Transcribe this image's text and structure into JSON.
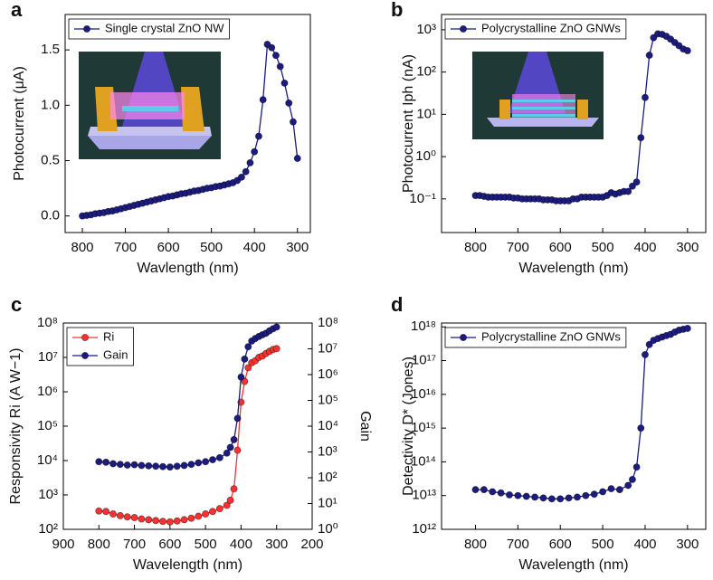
{
  "chart_data": [
    {
      "type": "line",
      "panel": "a",
      "x_label": "Wavlength (nm)",
      "y_label": "Photocurrent (μA)",
      "xlim": [
        840,
        270
      ],
      "xticks": [
        800,
        700,
        600,
        500,
        400,
        300
      ],
      "ylim": [
        -0.15,
        1.82
      ],
      "yticks": [
        {
          "value": 0,
          "label": "0.0"
        },
        0.5,
        {
          "value": 1,
          "label": "1.0"
        },
        1.5
      ],
      "log_y": false,
      "legend": "upper left",
      "x": [
        800,
        790,
        780,
        770,
        760,
        750,
        740,
        730,
        720,
        710,
        700,
        690,
        680,
        670,
        660,
        650,
        640,
        630,
        620,
        610,
        600,
        590,
        580,
        570,
        560,
        550,
        540,
        530,
        520,
        510,
        500,
        490,
        480,
        470,
        460,
        450,
        440,
        430,
        420,
        410,
        400,
        390,
        380,
        370,
        360,
        350,
        340,
        330,
        320,
        310,
        300
      ],
      "series": [
        {
          "name": "Single crystal ZnO NW",
          "color": "#1b1b80",
          "values": [
            0.0,
            0.005,
            0.01,
            0.02,
            0.025,
            0.03,
            0.04,
            0.045,
            0.055,
            0.065,
            0.075,
            0.085,
            0.095,
            0.105,
            0.115,
            0.125,
            0.135,
            0.145,
            0.155,
            0.165,
            0.175,
            0.18,
            0.19,
            0.2,
            0.205,
            0.215,
            0.225,
            0.23,
            0.24,
            0.25,
            0.255,
            0.265,
            0.27,
            0.28,
            0.29,
            0.3,
            0.32,
            0.35,
            0.4,
            0.48,
            0.58,
            0.72,
            1.05,
            1.55,
            1.52,
            1.45,
            1.35,
            1.2,
            1.02,
            0.85,
            0.52
          ]
        }
      ]
    },
    {
      "type": "line",
      "panel": "b",
      "x_label": "Wavelength (nm)",
      "y_label": "Photocurrent Iph (nA)",
      "xlim": [
        880,
        257
      ],
      "xticks": [
        800,
        700,
        600,
        500,
        400,
        300
      ],
      "ylim": [
        0.016,
        2300
      ],
      "yticks": [
        {
          "value": 0.1,
          "label": "10⁻¹"
        },
        {
          "value": 1,
          "label": "10⁰"
        },
        {
          "value": 10,
          "label": "10¹"
        },
        {
          "value": 100,
          "label": "10²"
        },
        {
          "value": 1000,
          "label": "10³"
        }
      ],
      "log_y": true,
      "legend": "upper left",
      "x": [
        800,
        790,
        780,
        770,
        760,
        750,
        740,
        730,
        720,
        710,
        700,
        690,
        680,
        670,
        660,
        650,
        640,
        630,
        620,
        610,
        600,
        590,
        580,
        570,
        560,
        550,
        540,
        530,
        520,
        510,
        500,
        490,
        480,
        470,
        460,
        450,
        440,
        430,
        420,
        410,
        400,
        390,
        380,
        370,
        360,
        350,
        340,
        330,
        320,
        310,
        300
      ],
      "series": [
        {
          "name": "Polycrystalline ZnO GNWs",
          "color": "#1b1b80",
          "values": [
            0.12,
            0.12,
            0.115,
            0.11,
            0.11,
            0.11,
            0.11,
            0.11,
            0.11,
            0.105,
            0.105,
            0.1,
            0.1,
            0.1,
            0.1,
            0.1,
            0.095,
            0.095,
            0.095,
            0.09,
            0.09,
            0.09,
            0.09,
            0.1,
            0.1,
            0.11,
            0.11,
            0.11,
            0.11,
            0.11,
            0.11,
            0.12,
            0.14,
            0.13,
            0.14,
            0.15,
            0.15,
            0.2,
            0.25,
            2.8,
            25,
            250,
            650,
            800,
            780,
            700,
            600,
            500,
            420,
            350,
            320
          ]
        }
      ]
    },
    {
      "type": "line",
      "panel": "c",
      "x_label": "Wavelength (nm)",
      "y_label": "Responsivity Ri (A W−1)",
      "y2_label": "Gain",
      "xlim": [
        900,
        200
      ],
      "xticks": [
        900,
        800,
        700,
        600,
        500,
        400,
        300,
        200
      ],
      "ylim": [
        100,
        100000000
      ],
      "yticks": [
        {
          "value": 100,
          "label": "10²"
        },
        {
          "value": 1000,
          "label": "10³"
        },
        {
          "value": 10000,
          "label": "10⁴"
        },
        {
          "value": 100000,
          "label": "10⁵"
        },
        {
          "value": 1000000,
          "label": "10⁶"
        },
        {
          "value": 10000000,
          "label": "10⁷"
        },
        {
          "value": 100000000,
          "label": "10⁸"
        }
      ],
      "y2lim": [
        1,
        100000000
      ],
      "y2ticks": [
        {
          "value": 1,
          "label": "10⁰"
        },
        {
          "value": 10,
          "label": "10¹"
        },
        {
          "value": 100,
          "label": "10²"
        },
        {
          "value": 1000,
          "label": "10³"
        },
        {
          "value": 10000,
          "label": "10⁴"
        },
        {
          "value": 100000,
          "label": "10⁵"
        },
        {
          "value": 1000000,
          "label": "10⁶"
        },
        {
          "value": 10000000,
          "label": "10⁷"
        },
        {
          "value": 100000000,
          "label": "10⁸"
        }
      ],
      "log_y": true,
      "legend": "upper left",
      "x": [
        800,
        780,
        760,
        740,
        720,
        700,
        680,
        660,
        640,
        620,
        600,
        580,
        560,
        540,
        520,
        500,
        480,
        460,
        440,
        430,
        420,
        410,
        400,
        390,
        380,
        370,
        360,
        350,
        340,
        330,
        320,
        310,
        300
      ],
      "series": [
        {
          "name": "Ri",
          "color": "#ff3030",
          "values": [
            340,
            330,
            280,
            250,
            230,
            220,
            200,
            190,
            180,
            170,
            165,
            175,
            190,
            210,
            240,
            280,
            330,
            400,
            500,
            700,
            1500,
            20000,
            500000,
            2000000,
            5000000,
            7000000,
            8000000,
            10000000,
            11000000,
            13000000,
            15000000,
            17000000,
            18000000
          ]
        },
        {
          "name": "Gain",
          "color": "#1b1b80",
          "axis": "y2",
          "values": [
            420,
            400,
            350,
            330,
            310,
            320,
            300,
            290,
            280,
            270,
            260,
            280,
            300,
            330,
            380,
            420,
            500,
            600,
            900,
            1500,
            3000,
            20000,
            800000,
            4000000,
            12000000,
            20000000,
            25000000,
            30000000,
            35000000,
            40000000,
            50000000,
            60000000,
            70000000
          ]
        }
      ]
    },
    {
      "type": "line",
      "panel": "d",
      "x_label": "Wavelength (nm)",
      "y_label": "Detectivity D* (Jones)",
      "xlim": [
        880,
        257
      ],
      "xticks": [
        800,
        700,
        600,
        500,
        400,
        300
      ],
      "ylim": [
        1000000000000,
        1300000000000000000
      ],
      "yticks": [
        {
          "value": 1000000000000,
          "label": "10¹²"
        },
        {
          "value": 10000000000000,
          "label": "10¹³"
        },
        {
          "value": 100000000000000,
          "label": "10¹⁴"
        },
        {
          "value": 1000000000000000,
          "label": "10¹⁵"
        },
        {
          "value": 10000000000000000,
          "label": "10¹⁶"
        },
        {
          "value": 100000000000000000,
          "label": "10¹⁷"
        },
        {
          "value": 1000000000000000000,
          "label": "10¹⁸"
        }
      ],
      "log_y": true,
      "legend": "upper left",
      "x": [
        800,
        780,
        760,
        740,
        720,
        700,
        680,
        660,
        640,
        620,
        600,
        580,
        560,
        540,
        520,
        500,
        480,
        460,
        440,
        430,
        420,
        410,
        400,
        390,
        380,
        370,
        360,
        350,
        340,
        330,
        320,
        310,
        300
      ],
      "series": [
        {
          "name": "Polycrystalline ZnO GNWs",
          "color": "#1b1b80",
          "values": [
            15000000000000,
            15000000000000,
            13000000000000,
            12000000000000,
            10500000000000,
            10000000000000,
            9500000000000,
            9000000000000,
            8500000000000,
            8000000000000,
            8000000000000,
            8500000000000,
            9000000000000,
            10000000000000,
            11000000000000,
            13000000000000,
            16000000000000,
            15000000000000,
            20000000000000,
            30000000000000,
            70000000000000,
            1000000000000000,
            150000000000000000,
            300000000000000000,
            400000000000000000,
            450000000000000000,
            500000000000000000,
            550000000000000000,
            600000000000000000,
            700000000000000000,
            800000000000000000,
            850000000000000000,
            900000000000000000
          ]
        }
      ]
    }
  ]
}
